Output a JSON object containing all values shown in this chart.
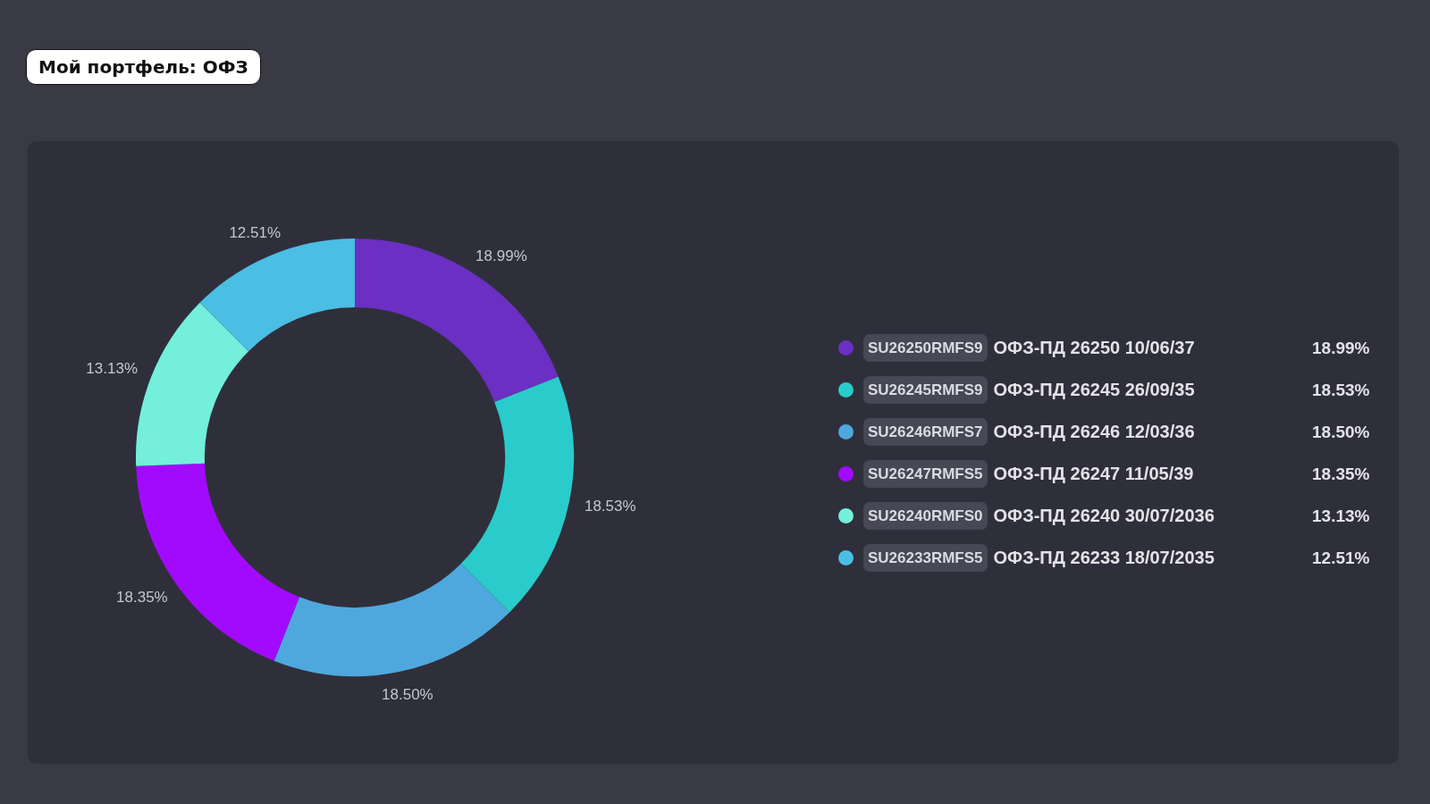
{
  "chart_data": {
    "type": "donut",
    "title": "Мой портфель: ОФЗ",
    "categories": [
      "SU26250RMFS9 ОФЗ-ПД 26250 10/06/37",
      "SU26245RMFS9 ОФЗ-ПД 26245 26/09/35",
      "SU26246RMFS7 ОФЗ-ПД 26246 12/03/36",
      "SU26247RMFS5 ОФЗ-ПД 26247 11/05/39",
      "SU26240RMFS0 ОФЗ-ПД 26240 30/07/2036",
      "SU26233RMFS5 ОФЗ-ПД 26233 18/07/2035"
    ],
    "values": [
      18.99,
      18.53,
      18.5,
      18.35,
      13.13,
      12.51
    ],
    "colors": [
      "#6b2fc3",
      "#2acbcb",
      "#4fa8dd",
      "#a20afe",
      "#73efdc",
      "#4abee3"
    ],
    "value_labels": [
      "18.99%",
      "18.53%",
      "18.50%",
      "18.35%",
      "13.13%",
      "12.51%"
    ],
    "legend": "right"
  }
}
